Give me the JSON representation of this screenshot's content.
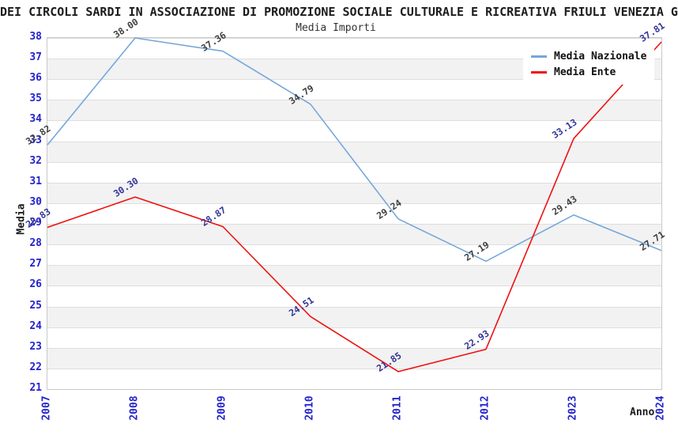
{
  "title": "DEI CIRCOLI SARDI IN ASSOCIAZIONE DI PROMOZIONE SOCIALE CULTURALE E RICREATIVA FRIULI VENEZIA G",
  "subtitle": "Media Importi",
  "legend": [
    {
      "label": "Media Nazionale",
      "color": "#74a7db"
    },
    {
      "label": "Media Ente",
      "color": "#ee1111"
    }
  ],
  "axis_style": {
    "tick_label_color": "#2323cc"
  },
  "chart_data": {
    "type": "line",
    "x": [
      "2007",
      "2008",
      "2009",
      "2010",
      "2011",
      "2012",
      "2023",
      "2024"
    ],
    "series": [
      {
        "name": "Media Nazionale",
        "color": "#74a7db",
        "label_color": "#3f3f3f",
        "values": [
          32.82,
          38.0,
          37.36,
          34.79,
          29.24,
          27.19,
          29.43,
          27.71
        ]
      },
      {
        "name": "Media Ente",
        "color": "#ee1111",
        "label_color": "#333399",
        "values": [
          28.83,
          30.3,
          28.87,
          24.51,
          21.85,
          22.93,
          33.13,
          37.81
        ]
      }
    ],
    "title": "Media Importi",
    "xlabel": "Anno",
    "ylabel": "Media",
    "ylim": [
      21,
      38
    ],
    "y_ticks": [
      21,
      22,
      23,
      24,
      25,
      26,
      27,
      28,
      29,
      30,
      31,
      32,
      33,
      34,
      35,
      36,
      37,
      38
    ],
    "grid": true,
    "band_fill": true,
    "legend_position": "top-right"
  }
}
